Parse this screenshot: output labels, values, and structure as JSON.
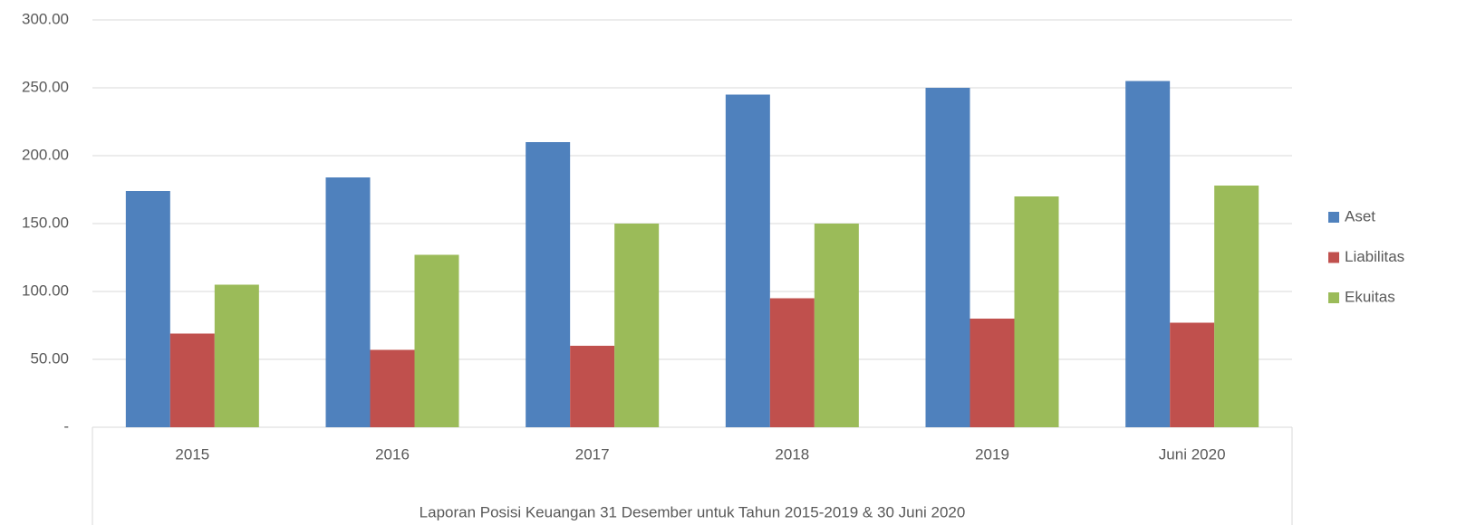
{
  "chart_data": {
    "type": "bar",
    "categories": [
      "2015",
      "2016",
      "2017",
      "2018",
      "2019",
      "Juni 2020"
    ],
    "series": [
      {
        "name": "Aset",
        "color": "#4f81bd",
        "values": [
          174,
          184,
          210,
          245,
          250,
          255
        ]
      },
      {
        "name": "Liabilitas",
        "color": "#c0504d",
        "values": [
          69,
          57,
          60,
          95,
          80,
          77
        ]
      },
      {
        "name": "Ekuitas",
        "color": "#9bbb59",
        "values": [
          105,
          127,
          150,
          150,
          170,
          178
        ]
      }
    ],
    "xlabel": "Laporan Posisi Keuangan 31 Desember untuk Tahun 2015-2019 & 30 Juni 2020",
    "ylim": [
      0,
      300
    ],
    "yticks": [
      {
        "value": 0,
        "label": "-"
      },
      {
        "value": 50,
        "label": "50.00"
      },
      {
        "value": 100,
        "label": "100.00"
      },
      {
        "value": 150,
        "label": "150.00"
      },
      {
        "value": 200,
        "label": "200.00"
      },
      {
        "value": 250,
        "label": "250.00"
      },
      {
        "value": 300,
        "label": "300.00"
      }
    ],
    "grid": true,
    "legend": "right"
  }
}
